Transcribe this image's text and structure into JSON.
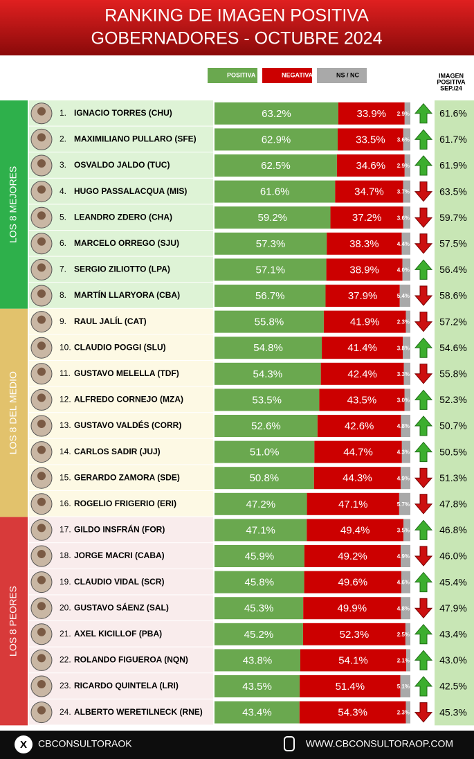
{
  "chart_data": {
    "type": "bar",
    "orientation": "horizontal",
    "stacked": true,
    "title": [
      "RANKING DE IMAGEN POSITIVA",
      "GOBERNADORES - OCTUBRE 2024"
    ],
    "xlim": [
      0,
      100
    ],
    "ranks": [
      "1.",
      "2.",
      "3.",
      "4.",
      "5.",
      "6.",
      "7.",
      "8.",
      "9.",
      "10.",
      "11.",
      "12.",
      "13.",
      "14.",
      "15.",
      "16.",
      "17.",
      "18.",
      "19.",
      "20.",
      "21.",
      "22.",
      "23.",
      "24."
    ],
    "categories": [
      "IGNACIO TORRES (CHU)",
      "MAXIMILIANO PULLARO (SFE)",
      "OSVALDO JALDO (TUC)",
      "HUGO PASSALACQUA (MIS)",
      "LEANDRO ZDERO (CHA)",
      "MARCELO ORREGO (SJU)",
      "SERGIO ZILIOTTO (LPA)",
      "MARTÍN LLARYORA (CBA)",
      "RAUL JALÍL (CAT)",
      "CLAUDIO POGGI (SLU)",
      "GUSTAVO MELELLA (TDF)",
      "ALFREDO CORNEJO (MZA)",
      "GUSTAVO VALDÉS (CORR)",
      "CARLOS SADIR (JUJ)",
      "GERARDO ZAMORA (SDE)",
      "ROGELIO FRIGERIO (ERI)",
      "GILDO INSFRÁN (FOR)",
      "JORGE MACRI (CABA)",
      "CLAUDIO VIDAL (SCR)",
      "GUSTAVO SÁENZ (SAL)",
      "AXEL KICILLOF (PBA)",
      "ROLANDO FIGUEROA (NQN)",
      "RICARDO QUINTELA (LRI)",
      "ALBERTO WERETILNECK (RNE)"
    ],
    "groups": [
      {
        "label": "LOS 8 MEJORES",
        "color": "#2eb04b",
        "background": "#def3d6"
      },
      {
        "label": "LOS 8 DEL MEDIO",
        "color": "#e2c26c",
        "background": "#fdf9e4"
      },
      {
        "label": "LOS 8 PEORES",
        "color": "#d83a3a",
        "background": "#f9ecec"
      }
    ],
    "series": [
      {
        "name": "POSITIVA",
        "color": "#6aa84f",
        "values": [
          63.2,
          62.9,
          62.5,
          61.6,
          59.2,
          57.3,
          57.1,
          56.7,
          55.8,
          54.8,
          54.3,
          53.5,
          52.6,
          51,
          50.8,
          47.2,
          47.1,
          45.9,
          45.8,
          45.3,
          45.2,
          43.8,
          43.5,
          43.4
        ],
        "value_labels": [
          "63.2%",
          "62.9%",
          "62.5%",
          "61.6%",
          "59.2%",
          "57.3%",
          "57.1%",
          "56.7%",
          "55.8%",
          "54.8%",
          "54.3%",
          "53.5%",
          "52.6%",
          "51.0%",
          "50.8%",
          "47.2%",
          "47.1%",
          "45.9%",
          "45.8%",
          "45.3%",
          "45.2%",
          "43.8%",
          "43.5%",
          "43.4%"
        ]
      },
      {
        "name": "NEGATIVA",
        "color": "#cc0000",
        "values": [
          33.9,
          33.5,
          34.6,
          34.7,
          37.2,
          38.3,
          38.9,
          37.9,
          41.9,
          41.4,
          42.4,
          43.5,
          42.6,
          44.7,
          44.3,
          47.1,
          49.4,
          49.2,
          49.6,
          49.9,
          52.3,
          54.1,
          51.4,
          54.3
        ],
        "value_labels": [
          "33.9%",
          "33.5%",
          "34.6%",
          "34.7%",
          "37.2%",
          "38.3%",
          "38.9%",
          "37.9%",
          "41.9%",
          "41.4%",
          "42.4%",
          "43.5%",
          "42.6%",
          "44.7%",
          "44.3%",
          "47.1%",
          "49.4%",
          "49.2%",
          "49.6%",
          "49.9%",
          "52.3%",
          "54.1%",
          "51.4%",
          "54.3%"
        ]
      },
      {
        "name": "NS / NC",
        "color": "#a9a9a9",
        "values": [
          2.9,
          3.6,
          2.9,
          3.7,
          3.6,
          4.4,
          4,
          5.4,
          2.3,
          3.8,
          3.3,
          3,
          4.8,
          4.3,
          4.9,
          5.7,
          3.5,
          4.9,
          4.6,
          4.8,
          2.5,
          2.1,
          5.1,
          2.3
        ],
        "value_labels": [
          "2.9%",
          "3.6%",
          "2.9%",
          "3.7%",
          "3.6%",
          "4.4%",
          "4.0%",
          "5.4%",
          "2.3%",
          "3.8%",
          "3.3%",
          "3.0%",
          "4.8%",
          "4.3%",
          "4.9%",
          "5.7%",
          "3.5%",
          "4.9%",
          "4.6%",
          "4.8%",
          "2.5%",
          "2.1%",
          "5.1%",
          "2.3%"
        ]
      }
    ],
    "previous": {
      "title": [
        "IMAGEN",
        "POSITIVA",
        "SEP./24"
      ],
      "values": [
        61.6,
        61.7,
        61.9,
        63.5,
        59.7,
        57.5,
        56.4,
        58.6,
        57.2,
        54.6,
        55.8,
        52.3,
        50.7,
        50.5,
        51.3,
        47.8,
        46.8,
        46,
        45.4,
        47.9,
        43.4,
        43,
        42.5,
        45.3
      ],
      "value_labels": [
        "61.6%",
        "61.7%",
        "61.9%",
        "63.5%",
        "59.7%",
        "57.5%",
        "56.4%",
        "58.6%",
        "57.2%",
        "54.6%",
        "55.8%",
        "52.3%",
        "50.7%",
        "50.5%",
        "51.3%",
        "47.8%",
        "46.8%",
        "46.0%",
        "45.4%",
        "47.9%",
        "43.4%",
        "43.0%",
        "42.5%",
        "45.3%"
      ]
    },
    "footer": {
      "left": "CBCONSULTORAOK",
      "right": "WWW.CBCONSULTORAOP.COM"
    }
  }
}
